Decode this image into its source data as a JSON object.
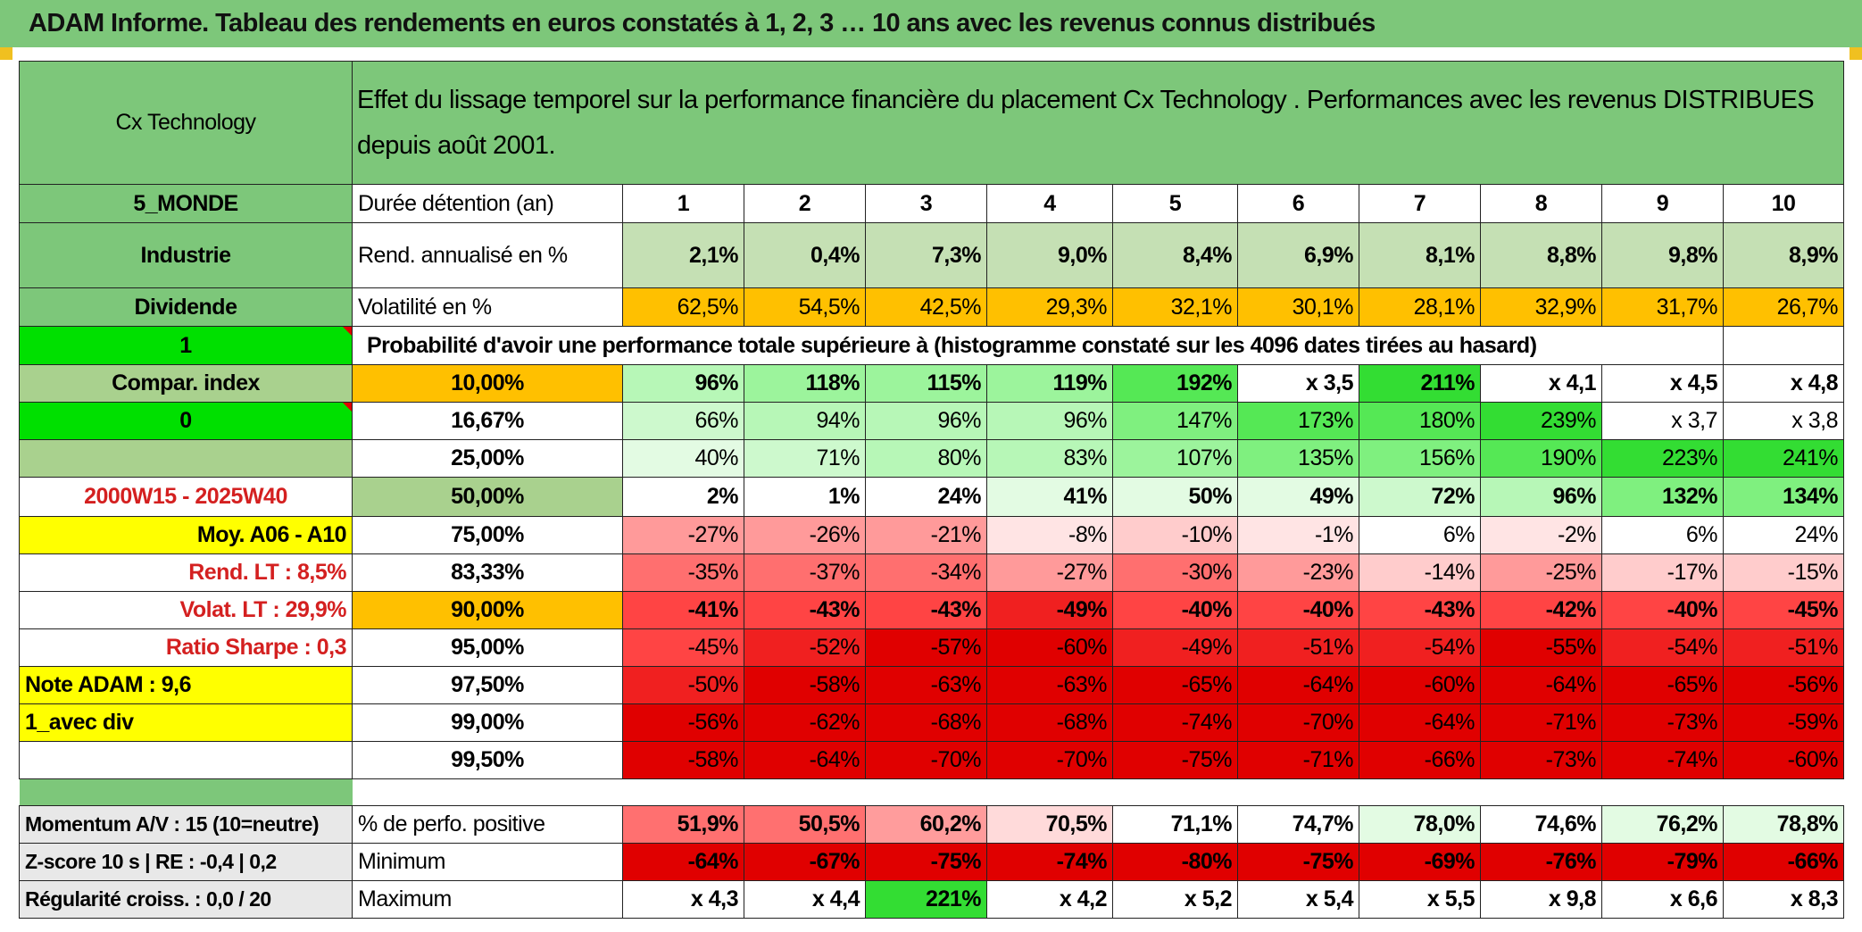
{
  "title": "ADAM Informe. Tableau des rendements en euros constatés à 1, 2, 3 … 10 ans avec les revenus connus distribués",
  "header": {
    "fund_name": "Cx Technology",
    "description": "Effet du lissage temporel sur la performance financière du placement Cx Technology . Performances avec les revenus DISTRIBUES depuis août 2001."
  },
  "left_labels": {
    "zone": "5_MONDE",
    "sector": "Industrie",
    "dividend": "Dividende",
    "flag_1": "1",
    "compar": "Compar. index",
    "flag_0": "0",
    "period": "2000W15 - 2025W40",
    "moy": "Moy. A06 - A10",
    "rend_lt": "Rend. LT :   8,5%",
    "volat_lt": "Volat. LT :   29,9%",
    "sharpe": "Ratio Sharpe :    0,3",
    "note": "Note ADAM : 9,6",
    "avec_div": "1_avec div"
  },
  "durations": {
    "label": "Durée détention (an)",
    "values": [
      "1",
      "2",
      "3",
      "4",
      "5",
      "6",
      "7",
      "8",
      "9",
      "10"
    ]
  },
  "rendement": {
    "label": "Rend. annualisé en %",
    "values": [
      "2,1%",
      "0,4%",
      "7,3%",
      "9,0%",
      "8,4%",
      "6,9%",
      "8,1%",
      "8,8%",
      "9,8%",
      "8,9%"
    ]
  },
  "volatilite": {
    "label": "Volatilité en %",
    "values": [
      "62,5%",
      "54,5%",
      "42,5%",
      "29,3%",
      "32,1%",
      "30,1%",
      "28,1%",
      "32,9%",
      "31,7%",
      "26,7%"
    ]
  },
  "probability_header": "Probabilité d'avoir une performance totale supérieure à (histogramme constaté sur les 4096 dates tirées au hasard)",
  "probability_rows": [
    {
      "p": "10,00%",
      "values": [
        "96%",
        "118%",
        "115%",
        "119%",
        "192%",
        "x 3,5",
        "211%",
        "x 4,1",
        "x 4,5",
        "x 4,8"
      ]
    },
    {
      "p": "16,67%",
      "values": [
        "66%",
        "94%",
        "96%",
        "96%",
        "147%",
        "173%",
        "180%",
        "239%",
        "x 3,7",
        "x 3,8"
      ]
    },
    {
      "p": "25,00%",
      "values": [
        "40%",
        "71%",
        "80%",
        "83%",
        "107%",
        "135%",
        "156%",
        "190%",
        "223%",
        "241%"
      ]
    },
    {
      "p": "50,00%",
      "values": [
        "2%",
        "1%",
        "24%",
        "41%",
        "50%",
        "49%",
        "72%",
        "96%",
        "132%",
        "134%"
      ]
    },
    {
      "p": "75,00%",
      "values": [
        "-27%",
        "-26%",
        "-21%",
        "-8%",
        "-10%",
        "-1%",
        "6%",
        "-2%",
        "6%",
        "24%"
      ]
    },
    {
      "p": "83,33%",
      "values": [
        "-35%",
        "-37%",
        "-34%",
        "-27%",
        "-30%",
        "-23%",
        "-14%",
        "-25%",
        "-17%",
        "-15%"
      ]
    },
    {
      "p": "90,00%",
      "values": [
        "-41%",
        "-43%",
        "-43%",
        "-49%",
        "-40%",
        "-40%",
        "-43%",
        "-42%",
        "-40%",
        "-45%"
      ]
    },
    {
      "p": "95,00%",
      "values": [
        "-45%",
        "-52%",
        "-57%",
        "-60%",
        "-49%",
        "-51%",
        "-54%",
        "-55%",
        "-54%",
        "-51%"
      ]
    },
    {
      "p": "97,50%",
      "values": [
        "-50%",
        "-58%",
        "-63%",
        "-63%",
        "-65%",
        "-64%",
        "-60%",
        "-64%",
        "-65%",
        "-56%"
      ]
    },
    {
      "p": "99,00%",
      "values": [
        "-56%",
        "-62%",
        "-68%",
        "-68%",
        "-74%",
        "-70%",
        "-64%",
        "-71%",
        "-73%",
        "-59%"
      ]
    },
    {
      "p": "99,50%",
      "values": [
        "-58%",
        "-64%",
        "-70%",
        "-70%",
        "-75%",
        "-71%",
        "-66%",
        "-73%",
        "-74%",
        "-60%"
      ]
    }
  ],
  "stats": [
    {
      "left": "Momentum A/V : 15 (10=neutre)",
      "label": "% de perfo. positive",
      "values": [
        "51,9%",
        "50,5%",
        "60,2%",
        "70,5%",
        "71,1%",
        "74,7%",
        "78,0%",
        "74,6%",
        "76,2%",
        "78,8%"
      ]
    },
    {
      "left": "Z-score 10 s | RE : -0,4 | 0,2",
      "label": "Minimum",
      "values": [
        "-64%",
        "-67%",
        "-75%",
        "-74%",
        "-80%",
        "-75%",
        "-69%",
        "-76%",
        "-79%",
        "-66%"
      ]
    },
    {
      "left": "Régularité croiss. : 0,0 / 20",
      "label": "Maximum",
      "values": [
        "x 4,3",
        "x 4,4",
        "221%",
        "x 4,2",
        "x 5,2",
        "x 5,4",
        "x 5,5",
        "x 9,8",
        "x 6,6",
        "x 8,3"
      ]
    }
  ],
  "colors": {
    "title_green": "#7dc77a",
    "light_green": "#c5e0b4",
    "orange": "#ffc000",
    "yellow": "#ffff00",
    "bright_green": "#00e000",
    "red_text": "#d42020"
  }
}
